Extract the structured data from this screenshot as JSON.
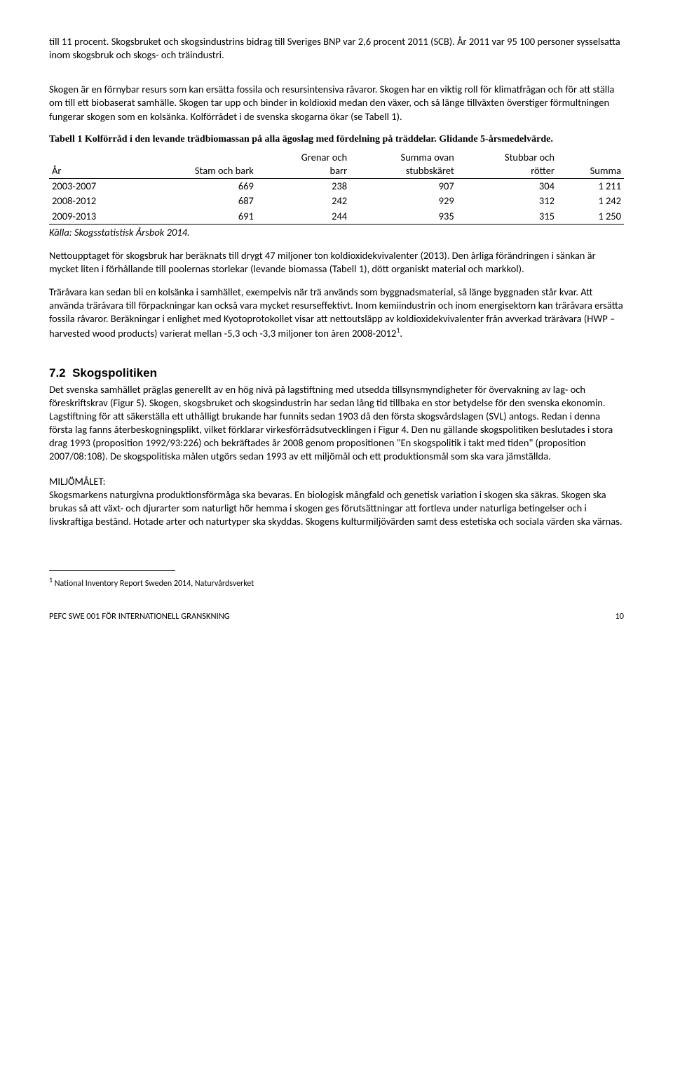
{
  "para1": "till 11 procent. Skogsbruket och skogsindustrins bidrag till Sveriges BNP var 2,6 procent 2011 (SCB). År 2011 var 95 100 personer sysselsatta inom skogsbruk och skogs- och träindustri.",
  "para2": "Skogen är en förnybar resurs som kan ersätta fossila och resursintensiva råvaror. Skogen har en viktig roll för klimatfrågan och för att ställa om till ett biobaserat samhälle. Skogen tar upp och binder in koldioxid medan den växer, och så länge tillväxten överstiger förmultningen fungerar skogen som en kolsänka. Kolförrådet i de svenska skogarna ökar (se Tabell 1).",
  "tableCaption": "Tabell 1 Kolförråd i den levande trädbiomassan på alla ägoslag med fördelning på träddelar. Glidande 5-årsmedelvärde.",
  "table": {
    "columns": [
      "År",
      "Stam och bark",
      "Grenar och\nbarr",
      "Summa ovan\nstubbskäret",
      "Stubbar och\nrötter",
      "Summa"
    ],
    "rows": [
      [
        "2003-2007",
        "669",
        "238",
        "907",
        "304",
        "1 211"
      ],
      [
        "2008-2012",
        "687",
        "242",
        "929",
        "312",
        "1 242"
      ],
      [
        "2009-2013",
        "691",
        "244",
        "935",
        "315",
        "1 250"
      ]
    ]
  },
  "source": "Källa: Skogsstatistisk Årsbok 2014.",
  "para3": "Nettoupptaget för skogsbruk har beräknats till drygt 47 miljoner ton koldioxidekvivalenter (2013). Den årliga förändringen i sänkan är mycket liten i förhållande till poolernas storlekar (levande biomassa (Tabell 1), dött organiskt material och markkol).",
  "para4a": "Träråvara kan sedan bli en kolsänka i samhället, exempelvis när trä används som byggnadsmaterial, så länge byggnaden står kvar. Att använda träråvara till förpackningar kan också vara mycket resurseffektivt. Inom kemiindustrin och inom energisektorn kan träråvara ersätta fossila råvaror. Beräkningar i enlighet med Kyotoprotokollet visar att nettoutsläpp av koldioxidekvivalenter från avverkad träråvara (HWP – harvested wood products) varierat mellan -5,3 och -3,3 miljoner ton åren 2008-2012",
  "para4b": ".",
  "sectionNum": "7.2",
  "sectionTitle": "Skogspolitiken",
  "para5": "Det svenska samhället präglas generellt av en hög nivå på lagstiftning med utsedda tillsynsmyndigheter för övervakning av lag- och föreskriftskrav (Figur 5). Skogen, skogsbruket och skogsindustrin har sedan lång tid tillbaka en stor betydelse för den svenska ekonomin. Lagstiftning för att säkerställa ett uthålligt brukande har funnits sedan 1903 då den första skogsvårdslagen (SVL) antogs. Redan i denna första lag fanns återbeskogningsplikt, vilket förklarar virkesförrådsutvecklingen i Figur 4. Den nu gällande skogspolitiken beslutades i stora drag 1993 (proposition 1992/93:226) och bekräftades år 2008 genom propositionen \"En skogspolitik i takt med tiden\" (proposition 2007/08:108). De skogspolitiska målen utgörs sedan 1993 av ett miljömål och ett produktionsmål som ska vara jämställda.",
  "miljoLabel": "MILJÖMÅLET:",
  "para6": "Skogsmarkens naturgivna produktionsförmåga ska bevaras. En biologisk mångfald och genetisk variation i skogen ska säkras. Skogen ska brukas så att växt- och djurarter som naturligt hör hemma i skogen ges förutsättningar att fortleva under naturliga betingelser och i livskraftiga bestånd. Hotade arter och naturtyper ska skyddas. Skogens kulturmiljövärden samt dess estetiska och sociala värden ska värnas.",
  "footnote": " National Inventory Report Sweden 2014, Naturvårdsverket",
  "footerLeft": "PEFC SWE 001 FÖR INTERNATIONELL GRANSKNING",
  "footerRight": "10"
}
